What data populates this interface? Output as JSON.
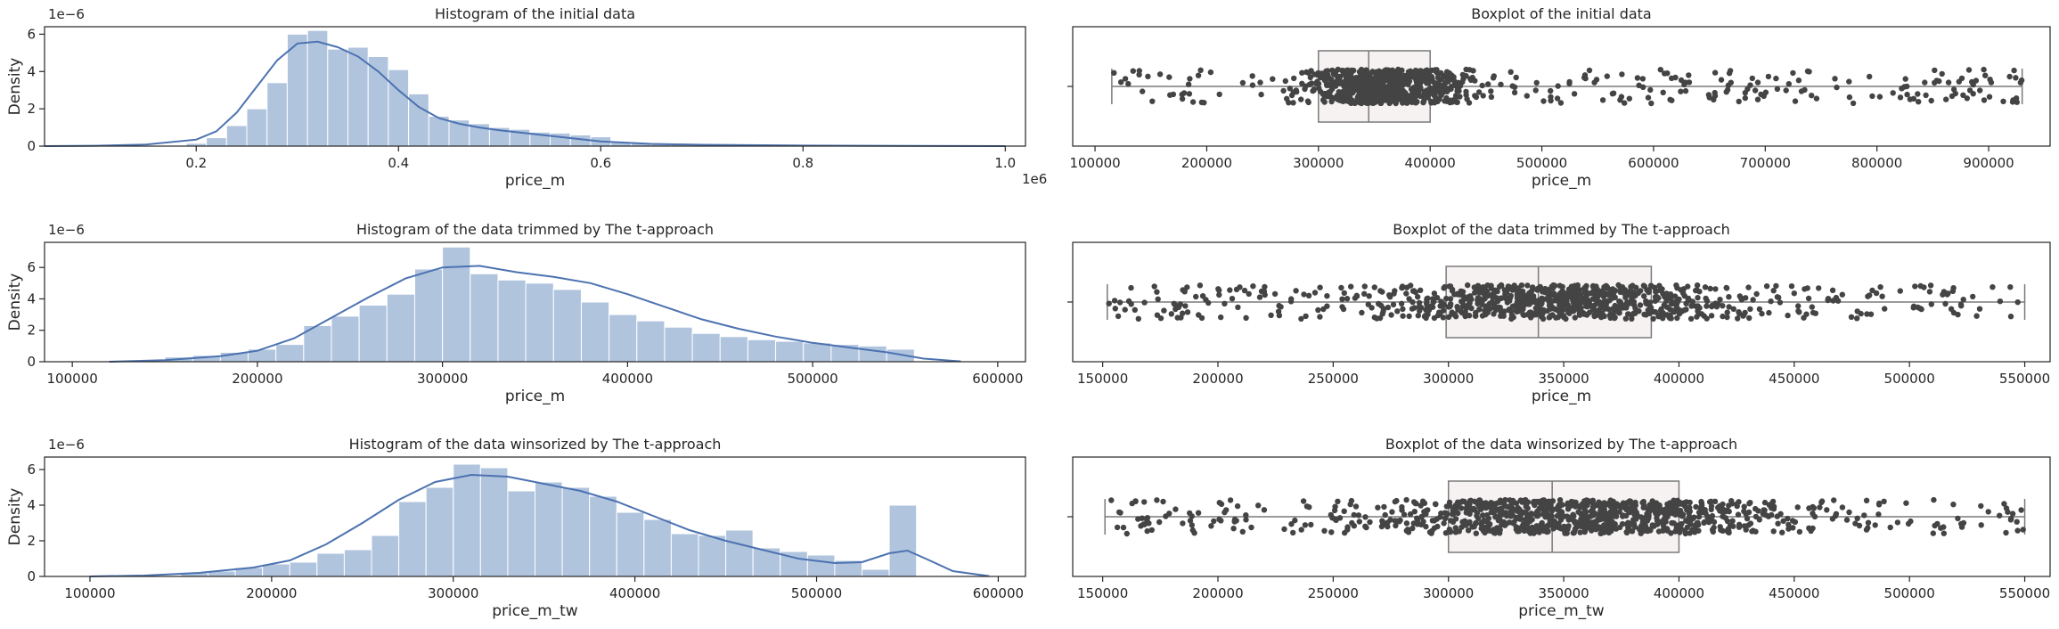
{
  "chart_data": [
    {
      "type": "bar",
      "kind": "histogram",
      "title": "Histogram of the initial data",
      "xlabel": "price_m",
      "ylabel": "Density",
      "xlim": [
        50000,
        1020000
      ],
      "ylim": [
        0,
        6.4e-06
      ],
      "x_ticks": [
        200000,
        400000,
        600000,
        800000,
        1000000
      ],
      "x_tick_labels": [
        "0.2",
        "0.4",
        "0.6",
        "0.8",
        "1.0"
      ],
      "x_offset_text": "1e6",
      "y_ticks": [
        0,
        2e-06,
        4e-06,
        6e-06
      ],
      "y_tick_labels": [
        "0",
        "2",
        "4",
        "6"
      ],
      "y_offset_text": "1e−6",
      "bin_edges": [
        190000,
        210000,
        230000,
        250000,
        270000,
        290000,
        310000,
        330000,
        350000,
        370000,
        390000,
        410000,
        430000,
        450000,
        470000,
        490000,
        510000,
        530000,
        550000,
        570000,
        590000,
        610000,
        630000,
        650000,
        670000,
        690000,
        710000,
        730000,
        750000,
        770000,
        790000,
        810000,
        830000,
        850000,
        870000,
        890000,
        910000,
        930000
      ],
      "values": [
        1.5e-07,
        4.5e-07,
        1.1e-06,
        2e-06,
        3.4e-06,
        6e-06,
        6.2e-06,
        5.2e-06,
        5.3e-06,
        4.8e-06,
        4.1e-06,
        2.8e-06,
        1.6e-06,
        1.4e-06,
        1.2e-06,
        1e-06,
        9e-07,
        7.5e-07,
        7e-07,
        6e-07,
        5e-07,
        2e-07,
        1.5e-07,
        1.5e-07,
        1e-07,
        1e-07,
        8e-08,
        8e-08,
        6e-08,
        6e-08,
        5e-08,
        4e-08,
        3e-08,
        3e-08,
        2e-08,
        2e-08,
        2e-08
      ],
      "kde_x": [
        50000,
        100000,
        150000,
        200000,
        220000,
        240000,
        260000,
        280000,
        300000,
        320000,
        340000,
        360000,
        380000,
        400000,
        420000,
        440000,
        460000,
        480000,
        500000,
        550000,
        600000,
        650000,
        700000,
        800000,
        900000,
        1000000
      ],
      "kde_y": [
        0.0,
        2e-08,
        8e-08,
        3.5e-07,
        8e-07,
        1.8e-06,
        3.2e-06,
        4.6e-06,
        5.5e-06,
        5.6e-06,
        5.3e-06,
        4.8e-06,
        4e-06,
        3e-06,
        2.1e-06,
        1.5e-06,
        1.2e-06,
        1e-06,
        8.5e-07,
        5.5e-07,
        2.5e-07,
        1.2e-07,
        7e-08,
        3e-08,
        1e-08,
        0.0
      ],
      "colors": {
        "bar": "#b0c4de",
        "line": "#4c72b0"
      }
    },
    {
      "type": "boxplot",
      "title": "Boxplot of the initial data",
      "xlabel": "price_m",
      "xlim": [
        80000,
        955000
      ],
      "x_ticks": [
        100000,
        200000,
        300000,
        400000,
        500000,
        600000,
        700000,
        800000,
        900000
      ],
      "x_tick_labels": [
        "100000",
        "200000",
        "300000",
        "400000",
        "500000",
        "600000",
        "700000",
        "800000",
        "900000"
      ],
      "box": {
        "whisker_low": 115000,
        "q1": 300000,
        "median": 345000,
        "q3": 400000,
        "whisker_high": 930000
      },
      "points": {
        "range": [
          115000,
          930000
        ],
        "core": [
          260000,
          460000
        ],
        "count": 900,
        "seed": 11
      },
      "colors": {
        "box": "#f7f2f2",
        "edge": "#7a7a7a",
        "point": "#444444"
      }
    },
    {
      "type": "bar",
      "kind": "histogram",
      "title": "Histogram of the data trimmed by The t-approach",
      "xlabel": "price_m",
      "ylabel": "Density",
      "xlim": [
        85000,
        615000
      ],
      "ylim": [
        0,
        7.6e-06
      ],
      "x_ticks": [
        100000,
        200000,
        300000,
        400000,
        500000,
        600000
      ],
      "x_tick_labels": [
        "100000",
        "200000",
        "300000",
        "400000",
        "500000",
        "600000"
      ],
      "y_ticks": [
        0,
        2e-06,
        4e-06,
        6e-06
      ],
      "y_tick_labels": [
        "0",
        "2",
        "4",
        "6"
      ],
      "y_offset_text": "1e−6",
      "bin_edges": [
        150000,
        165000,
        180000,
        195000,
        210000,
        225000,
        240000,
        255000,
        270000,
        285000,
        300000,
        315000,
        330000,
        345000,
        360000,
        375000,
        390000,
        405000,
        420000,
        435000,
        450000,
        465000,
        480000,
        495000,
        510000,
        525000,
        540000,
        555000
      ],
      "values": [
        3e-07,
        4e-07,
        6e-07,
        8e-07,
        1.1e-06,
        2.3e-06,
        2.9e-06,
        3.6e-06,
        4.3e-06,
        5.9e-06,
        7.3e-06,
        5.6e-06,
        5.2e-06,
        5e-06,
        4.6e-06,
        3.8e-06,
        3e-06,
        2.6e-06,
        2.2e-06,
        1.8e-06,
        1.6e-06,
        1.4e-06,
        1.3e-06,
        1.2e-06,
        1.1e-06,
        1e-06,
        8e-07
      ],
      "kde_x": [
        120000,
        150000,
        180000,
        200000,
        220000,
        240000,
        260000,
        280000,
        300000,
        320000,
        340000,
        360000,
        380000,
        400000,
        420000,
        440000,
        460000,
        480000,
        500000,
        520000,
        540000,
        560000,
        580000
      ],
      "kde_y": [
        0.0,
        1e-07,
        3.5e-07,
        7e-07,
        1.5e-06,
        2.8e-06,
        4.1e-06,
        5.3e-06,
        6e-06,
        6.1e-06,
        5.7e-06,
        5.4e-06,
        5e-06,
        4.3e-06,
        3.5e-06,
        2.7e-06,
        2.1e-06,
        1.6e-06,
        1.2e-06,
        9e-07,
        6e-07,
        2e-07,
        2e-08
      ],
      "colors": {
        "bar": "#b0c4de",
        "line": "#4c72b0"
      }
    },
    {
      "type": "boxplot",
      "title": "Boxplot of the data trimmed by The t-approach",
      "xlabel": "price_m",
      "xlim": [
        137000,
        561000
      ],
      "x_ticks": [
        150000,
        200000,
        250000,
        300000,
        350000,
        400000,
        450000,
        500000,
        550000
      ],
      "x_tick_labels": [
        "150000",
        "200000",
        "250000",
        "300000",
        "350000",
        "400000",
        "450000",
        "500000",
        "550000"
      ],
      "box": {
        "whisker_low": 152000,
        "q1": 299000,
        "median": 339000,
        "q3": 388000,
        "whisker_high": 550000
      },
      "points": {
        "range": [
          152000,
          550000
        ],
        "core": [
          240000,
          460000
        ],
        "count": 900,
        "seed": 23
      },
      "colors": {
        "box": "#f7f2f2",
        "edge": "#7a7a7a",
        "point": "#444444"
      }
    },
    {
      "type": "bar",
      "kind": "histogram",
      "title": "Histogram of the data winsorized by The t-approach",
      "xlabel": "price_m_tw",
      "ylabel": "Density",
      "xlim": [
        75000,
        615000
      ],
      "ylim": [
        0,
        6.7e-06
      ],
      "x_ticks": [
        100000,
        200000,
        300000,
        400000,
        500000,
        600000
      ],
      "x_tick_labels": [
        "100000",
        "200000",
        "300000",
        "400000",
        "500000",
        "600000"
      ],
      "y_ticks": [
        0,
        2e-06,
        4e-06,
        6e-06
      ],
      "y_tick_labels": [
        "0",
        "2",
        "4",
        "6"
      ],
      "y_offset_text": "1e−6",
      "bin_edges": [
        150000,
        165000,
        180000,
        195000,
        210000,
        225000,
        240000,
        255000,
        270000,
        285000,
        300000,
        315000,
        330000,
        345000,
        360000,
        375000,
        390000,
        405000,
        420000,
        435000,
        450000,
        465000,
        480000,
        495000,
        510000,
        525000,
        540000,
        555000
      ],
      "values": [
        2e-07,
        3e-07,
        5e-07,
        7e-07,
        8e-07,
        1.3e-06,
        1.5e-06,
        2.3e-06,
        4.2e-06,
        5e-06,
        6.3e-06,
        6.1e-06,
        4.8e-06,
        5.3e-06,
        5e-06,
        4.5e-06,
        3.6e-06,
        3.2e-06,
        2.4e-06,
        2.3e-06,
        2.6e-06,
        1.6e-06,
        1.4e-06,
        1.2e-06,
        9e-07,
        4e-07,
        4e-06
      ],
      "kde_x": [
        100000,
        130000,
        160000,
        190000,
        210000,
        230000,
        250000,
        270000,
        290000,
        310000,
        330000,
        350000,
        370000,
        390000,
        410000,
        430000,
        450000,
        470000,
        490000,
        510000,
        525000,
        540000,
        550000,
        560000,
        575000,
        595000
      ],
      "kde_y": [
        0.0,
        5e-08,
        2e-07,
        5e-07,
        9e-07,
        1.8e-06,
        3e-06,
        4.3e-06,
        5.3e-06,
        5.7e-06,
        5.6e-06,
        5.2e-06,
        4.8e-06,
        4.2e-06,
        3.4e-06,
        2.6e-06,
        2e-06,
        1.5e-06,
        1e-06,
        7.5e-07,
        8e-07,
        1.3e-06,
        1.45e-06,
        1e-06,
        3e-07,
        2e-08
      ],
      "colors": {
        "bar": "#b0c4de",
        "line": "#4c72b0"
      }
    },
    {
      "type": "boxplot",
      "title": "Boxplot of the data winsorized by The t-approach",
      "xlabel": "price_m_tw",
      "xlim": [
        137000,
        561000
      ],
      "x_ticks": [
        150000,
        200000,
        250000,
        300000,
        350000,
        400000,
        450000,
        500000,
        550000
      ],
      "x_tick_labels": [
        "150000",
        "200000",
        "250000",
        "300000",
        "350000",
        "400000",
        "450000",
        "500000",
        "550000"
      ],
      "box": {
        "whisker_low": 151000,
        "q1": 300000,
        "median": 345000,
        "q3": 400000,
        "whisker_high": 550000
      },
      "points": {
        "range": [
          151000,
          550000
        ],
        "core": [
          240000,
          480000
        ],
        "count": 1000,
        "seed": 37
      },
      "colors": {
        "box": "#f7f2f2",
        "edge": "#7a7a7a",
        "point": "#444444"
      }
    }
  ]
}
